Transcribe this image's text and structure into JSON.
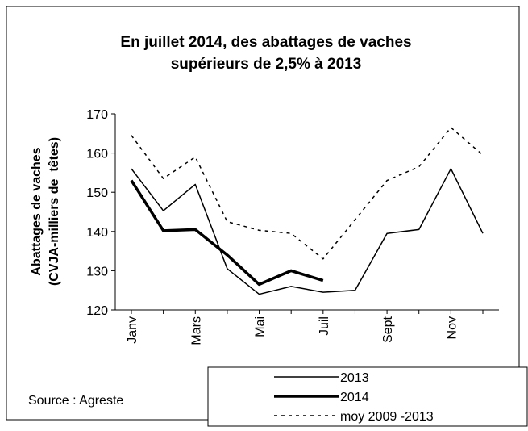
{
  "chart_data": {
    "type": "line",
    "title": [
      "En juillet 2014, des abattages de vaches",
      "supérieurs de 2,5% à 2013"
    ],
    "ylabel": [
      "Abattages de vaches",
      "(CVJA-milliers de  têtes)"
    ],
    "categories": [
      "Janv",
      null,
      "Mars",
      null,
      "Mai",
      null,
      "Juil",
      null,
      "Sept",
      null,
      "Nov",
      null
    ],
    "series": [
      {
        "name": "2013",
        "color": "#000000",
        "line_width": 1.5,
        "dashed": false,
        "values": [
          156,
          145.3,
          152,
          130.5,
          124,
          126,
          124.5,
          125,
          139.5,
          140.5,
          156,
          139.5
        ]
      },
      {
        "name": "2014",
        "color": "#000000",
        "line_width": 3.5,
        "dashed": false,
        "values": [
          153,
          140.2,
          140.5,
          134,
          126.5,
          130,
          127.5,
          null,
          null,
          null,
          null,
          null
        ]
      },
      {
        "name": "moy 2009 -2013",
        "color": "#000000",
        "line_width": 1.5,
        "dashed": true,
        "values": [
          164.5,
          153.5,
          159,
          142.5,
          140.3,
          139.5,
          133,
          143,
          153,
          156.5,
          166.5,
          159.5
        ]
      }
    ],
    "ylim": [
      120,
      170
    ],
    "yticks": [
      120,
      130,
      140,
      150,
      160,
      170
    ],
    "source": "Source : Agreste"
  }
}
